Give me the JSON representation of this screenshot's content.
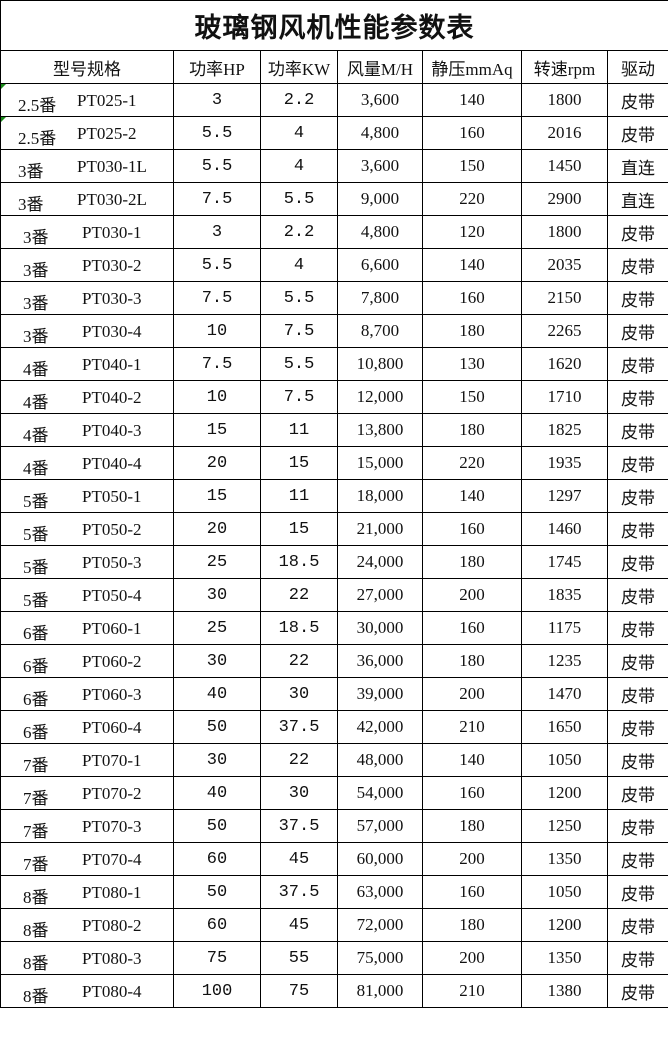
{
  "title": "玻璃钢风机性能参数表",
  "headers": [
    "型号规格",
    "功率HP",
    "功率KW",
    "风量M/H",
    "静压mmAq",
    "转速rpm",
    "驱动"
  ],
  "rows": [
    {
      "size": "2.5番",
      "model": "PT025-1",
      "hp": "3",
      "kw": "2.2",
      "airflow": "3,600",
      "pressure": "140",
      "rpm": "1800",
      "drive": "皮带"
    },
    {
      "size": "2.5番",
      "model": "PT025-2",
      "hp": "5.5",
      "kw": "4",
      "airflow": "4,800",
      "pressure": "160",
      "rpm": "2016",
      "drive": "皮带"
    },
    {
      "size": "3番",
      "model": "PT030-1L",
      "hp": "5.5",
      "kw": "4",
      "airflow": "3,600",
      "pressure": "150",
      "rpm": "1450",
      "drive": "直连"
    },
    {
      "size": "3番",
      "model": "PT030-2L",
      "hp": "7.5",
      "kw": "5.5",
      "airflow": "9,000",
      "pressure": "220",
      "rpm": "2900",
      "drive": "直连"
    },
    {
      "size": "3番",
      "model": "PT030-1",
      "hp": "3",
      "kw": "2.2",
      "airflow": "4,800",
      "pressure": "120",
      "rpm": "1800",
      "drive": "皮带"
    },
    {
      "size": "3番",
      "model": "PT030-2",
      "hp": "5.5",
      "kw": "4",
      "airflow": "6,600",
      "pressure": "140",
      "rpm": "2035",
      "drive": "皮带"
    },
    {
      "size": "3番",
      "model": "PT030-3",
      "hp": "7.5",
      "kw": "5.5",
      "airflow": "7,800",
      "pressure": "160",
      "rpm": "2150",
      "drive": "皮带"
    },
    {
      "size": "3番",
      "model": "PT030-4",
      "hp": "10",
      "kw": "7.5",
      "airflow": "8,700",
      "pressure": "180",
      "rpm": "2265",
      "drive": "皮带"
    },
    {
      "size": "4番",
      "model": "PT040-1",
      "hp": "7.5",
      "kw": "5.5",
      "airflow": "10,800",
      "pressure": "130",
      "rpm": "1620",
      "drive": "皮带"
    },
    {
      "size": "4番",
      "model": "PT040-2",
      "hp": "10",
      "kw": "7.5",
      "airflow": "12,000",
      "pressure": "150",
      "rpm": "1710",
      "drive": "皮带"
    },
    {
      "size": "4番",
      "model": "PT040-3",
      "hp": "15",
      "kw": "11",
      "airflow": "13,800",
      "pressure": "180",
      "rpm": "1825",
      "drive": "皮带"
    },
    {
      "size": "4番",
      "model": "PT040-4",
      "hp": "20",
      "kw": "15",
      "airflow": "15,000",
      "pressure": "220",
      "rpm": "1935",
      "drive": "皮带"
    },
    {
      "size": "5番",
      "model": "PT050-1",
      "hp": "15",
      "kw": "11",
      "airflow": "18,000",
      "pressure": "140",
      "rpm": "1297",
      "drive": "皮带"
    },
    {
      "size": "5番",
      "model": "PT050-2",
      "hp": "20",
      "kw": "15",
      "airflow": "21,000",
      "pressure": "160",
      "rpm": "1460",
      "drive": "皮带"
    },
    {
      "size": "5番",
      "model": "PT050-3",
      "hp": "25",
      "kw": "18.5",
      "airflow": "24,000",
      "pressure": "180",
      "rpm": "1745",
      "drive": "皮带"
    },
    {
      "size": "5番",
      "model": "PT050-4",
      "hp": "30",
      "kw": "22",
      "airflow": "27,000",
      "pressure": "200",
      "rpm": "1835",
      "drive": "皮带"
    },
    {
      "size": "6番",
      "model": "PT060-1",
      "hp": "25",
      "kw": "18.5",
      "airflow": "30,000",
      "pressure": "160",
      "rpm": "1175",
      "drive": "皮带"
    },
    {
      "size": "6番",
      "model": "PT060-2",
      "hp": "30",
      "kw": "22",
      "airflow": "36,000",
      "pressure": "180",
      "rpm": "1235",
      "drive": "皮带"
    },
    {
      "size": "6番",
      "model": "PT060-3",
      "hp": "40",
      "kw": "30",
      "airflow": "39,000",
      "pressure": "200",
      "rpm": "1470",
      "drive": "皮带"
    },
    {
      "size": "6番",
      "model": "PT060-4",
      "hp": "50",
      "kw": "37.5",
      "airflow": "42,000",
      "pressure": "210",
      "rpm": "1650",
      "drive": "皮带"
    },
    {
      "size": "7番",
      "model": "PT070-1",
      "hp": "30",
      "kw": "22",
      "airflow": "48,000",
      "pressure": "140",
      "rpm": "1050",
      "drive": "皮带"
    },
    {
      "size": "7番",
      "model": "PT070-2",
      "hp": "40",
      "kw": "30",
      "airflow": "54,000",
      "pressure": "160",
      "rpm": "1200",
      "drive": "皮带"
    },
    {
      "size": "7番",
      "model": "PT070-3",
      "hp": "50",
      "kw": "37.5",
      "airflow": "57,000",
      "pressure": "180",
      "rpm": "1250",
      "drive": "皮带"
    },
    {
      "size": "7番",
      "model": "PT070-4",
      "hp": "60",
      "kw": "45",
      "airflow": "60,000",
      "pressure": "200",
      "rpm": "1350",
      "drive": "皮带"
    },
    {
      "size": "8番",
      "model": "PT080-1",
      "hp": "50",
      "kw": "37.5",
      "airflow": "63,000",
      "pressure": "160",
      "rpm": "1050",
      "drive": "皮带"
    },
    {
      "size": "8番",
      "model": "PT080-2",
      "hp": "60",
      "kw": "45",
      "airflow": "72,000",
      "pressure": "180",
      "rpm": "1200",
      "drive": "皮带"
    },
    {
      "size": "8番",
      "model": "PT080-3",
      "hp": "75",
      "kw": "55",
      "airflow": "75,000",
      "pressure": "200",
      "rpm": "1350",
      "drive": "皮带"
    },
    {
      "size": "8番",
      "model": "PT080-4",
      "hp": "100",
      "kw": "75",
      "airflow": "81,000",
      "pressure": "210",
      "rpm": "1380",
      "drive": "皮带"
    }
  ]
}
